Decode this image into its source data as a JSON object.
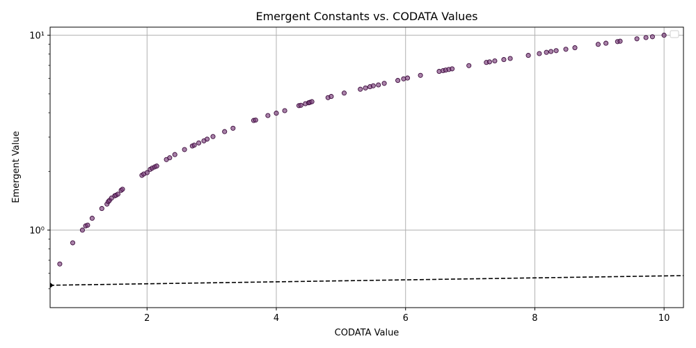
{
  "chart_data": {
    "type": "scatter",
    "title": "Emergent Constants vs. CODATA Values",
    "xlabel": "CODATA Value",
    "ylabel": "Emergent Value",
    "xlim": [
      0.5,
      10.3
    ],
    "ylim": [
      0.4,
      11
    ],
    "yscale": "log",
    "grid": true,
    "legend": "top-right (empty)",
    "x_ticks": [
      {
        "value": 2,
        "label": "2"
      },
      {
        "value": 4,
        "label": "4"
      },
      {
        "value": 6,
        "label": "6"
      },
      {
        "value": 8,
        "label": "8"
      },
      {
        "value": 10,
        "label": "10"
      }
    ],
    "y_ticks": [
      {
        "value": 1,
        "label": "10⁰"
      },
      {
        "value": 10,
        "label": "10¹"
      }
    ],
    "colors": {
      "marker_fill": "#7b3f7b",
      "marker_edge": "#3b0a3b",
      "reference_line": "#000000",
      "grid": "#b0b0b0"
    },
    "series": [
      {
        "marker": "circle",
        "x": [
          0.65,
          0.85,
          1.0,
          1.05,
          1.08,
          1.15,
          1.3,
          1.38,
          1.4,
          1.42,
          1.45,
          1.5,
          1.52,
          1.55,
          1.6,
          1.62,
          1.92,
          1.95,
          2.0,
          2.05,
          2.08,
          2.12,
          2.15,
          2.3,
          2.35,
          2.43,
          2.58,
          2.7,
          2.73,
          2.8,
          2.88,
          2.93,
          3.02,
          3.2,
          3.33,
          3.65,
          3.68,
          3.87,
          4.0,
          4.13,
          4.35,
          4.38,
          4.45,
          4.5,
          4.52,
          4.55,
          4.8,
          4.85,
          5.05,
          5.3,
          5.38,
          5.45,
          5.5,
          5.58,
          5.67,
          5.88,
          5.97,
          6.03,
          6.23,
          6.52,
          6.58,
          6.62,
          6.67,
          6.72,
          6.98,
          7.25,
          7.3,
          7.38,
          7.52,
          7.62,
          7.9,
          8.07,
          8.18,
          8.25,
          8.33,
          8.48,
          8.62,
          8.98,
          9.1,
          9.28,
          9.32,
          9.58,
          9.72,
          9.82,
          10.0
        ],
        "y": [
          0.67,
          0.86,
          1.0,
          1.05,
          1.06,
          1.15,
          1.29,
          1.36,
          1.4,
          1.42,
          1.46,
          1.5,
          1.51,
          1.53,
          1.6,
          1.62,
          1.91,
          1.94,
          1.97,
          2.05,
          2.08,
          2.11,
          2.13,
          2.3,
          2.35,
          2.44,
          2.59,
          2.7,
          2.73,
          2.8,
          2.87,
          2.93,
          3.02,
          3.2,
          3.33,
          3.65,
          3.67,
          3.87,
          3.98,
          4.1,
          4.35,
          4.37,
          4.45,
          4.5,
          4.52,
          4.56,
          4.78,
          4.85,
          5.05,
          5.28,
          5.36,
          5.44,
          5.5,
          5.56,
          5.66,
          5.86,
          5.97,
          6.03,
          6.22,
          6.52,
          6.58,
          6.62,
          6.67,
          6.72,
          6.98,
          7.25,
          7.3,
          7.38,
          7.5,
          7.6,
          7.88,
          8.05,
          8.17,
          8.25,
          8.33,
          8.47,
          8.62,
          8.98,
          9.1,
          9.27,
          9.32,
          9.58,
          9.72,
          9.82,
          10.0
        ]
      },
      {
        "style": "dashed",
        "x": [
          0.5,
          10.3
        ],
        "y": [
          0.521,
          0.584
        ]
      }
    ]
  }
}
